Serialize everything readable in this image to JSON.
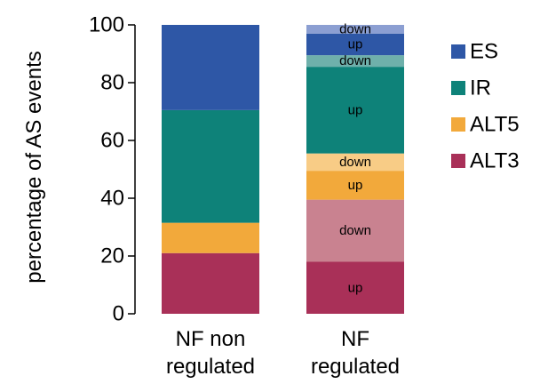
{
  "chart_data": {
    "type": "bar",
    "stacked": true,
    "ylabel": "percentage of AS events",
    "xlabel": "",
    "ylim": [
      0,
      100
    ],
    "yticks": [
      0,
      20,
      40,
      60,
      80,
      100
    ],
    "grid": false,
    "legend_position": "right",
    "categories": [
      {
        "line1": "NF non",
        "line2": "regulated"
      },
      {
        "line1": "NF",
        "line2": "regulated"
      }
    ],
    "legend": [
      {
        "name": "ES",
        "color": "#2E57A6"
      },
      {
        "name": "IR",
        "color": "#0E8279"
      },
      {
        "name": "ALT5",
        "color": "#F2A93B"
      },
      {
        "name": "ALT3",
        "color": "#A93058"
      }
    ],
    "stacks": [
      [
        {
          "type": "ALT3",
          "value": 21,
          "color": "#A93058",
          "label": ""
        },
        {
          "type": "ALT5",
          "value": 10.5,
          "color": "#F2A93B",
          "label": ""
        },
        {
          "type": "IR",
          "value": 39,
          "color": "#0E8279",
          "label": ""
        },
        {
          "type": "ES",
          "value": 29.5,
          "color": "#2E57A6",
          "label": ""
        }
      ],
      [
        {
          "type": "ALT3",
          "value": 18,
          "color": "#A93058",
          "label": "up"
        },
        {
          "type": "ALT3",
          "value": 21.5,
          "color": "#C98290",
          "label": "down"
        },
        {
          "type": "ALT5",
          "value": 10,
          "color": "#F2A93B",
          "label": "up"
        },
        {
          "type": "ALT5",
          "value": 6,
          "color": "#F8CC86",
          "label": "down"
        },
        {
          "type": "IR",
          "value": 30,
          "color": "#0E8279",
          "label": "up"
        },
        {
          "type": "IR",
          "value": 4,
          "color": "#6FB0AB",
          "label": "down"
        },
        {
          "type": "ES",
          "value": 7.5,
          "color": "#2E57A6",
          "label": "up"
        },
        {
          "type": "ES",
          "value": 3,
          "color": "#8C9FD2",
          "label": "down"
        }
      ]
    ]
  }
}
